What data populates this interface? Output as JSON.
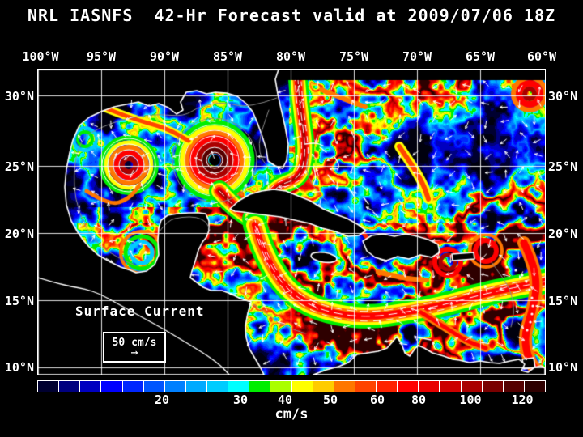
{
  "title": "NRL IASNFS  42-Hr Forecast valid at 2009/07/06 18Z",
  "axes": {
    "longitude": [
      "100°W",
      "95°W",
      "90°W",
      "85°W",
      "80°W",
      "75°W",
      "70°W",
      "65°W",
      "60°W"
    ],
    "latitude_left": [
      "30°N",
      "25°N",
      "20°N",
      "15°N",
      "10°N"
    ],
    "latitude_right": [
      "30°N",
      "25°N",
      "20°N",
      "15°N",
      "10°N"
    ]
  },
  "legend": {
    "title": "Surface Current",
    "scale_value": "50 cm/s",
    "arrow_glyph": "→"
  },
  "colorbar": {
    "unit": "cm/s",
    "ticks": [
      "20",
      "30",
      "40",
      "50",
      "60",
      "80",
      "100",
      "120"
    ],
    "colors": [
      "#000030",
      "#000080",
      "#0000C0",
      "#0000FF",
      "#0026FF",
      "#0055FF",
      "#0080FF",
      "#00AAFF",
      "#00CCFF",
      "#00FFFF",
      "#00EE00",
      "#AAFF00",
      "#FFFF00",
      "#FFCC00",
      "#FF7700",
      "#FF4400",
      "#FF2200",
      "#FF0000",
      "#E80000",
      "#CC0000",
      "#AA0000",
      "#7A0000",
      "#550000",
      "#2E0000"
    ]
  },
  "chart_data": {
    "type": "heatmap",
    "title": "NRL IASNFS 42-Hr Forecast valid at 2009/07/06 18Z",
    "variable": "Surface Current speed",
    "unit": "cm/s",
    "colorbar_tick_values": [
      20,
      30,
      40,
      50,
      60,
      80,
      100,
      120
    ],
    "longitude_ticks_degW": [
      100,
      95,
      90,
      85,
      80,
      75,
      70,
      65,
      60
    ],
    "latitude_ticks_degN": [
      30,
      25,
      20,
      15,
      10
    ],
    "reference_vector_cm_s": 50,
    "legend_position": "bottom",
    "grid": true
  }
}
